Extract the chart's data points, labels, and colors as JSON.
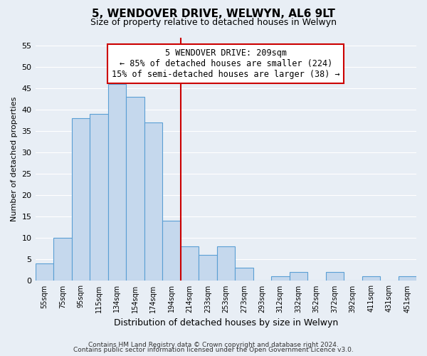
{
  "title": "5, WENDOVER DRIVE, WELWYN, AL6 9LT",
  "subtitle": "Size of property relative to detached houses in Welwyn",
  "xlabel": "Distribution of detached houses by size in Welwyn",
  "ylabel": "Number of detached properties",
  "categories": [
    "55sqm",
    "75sqm",
    "95sqm",
    "115sqm",
    "134sqm",
    "154sqm",
    "174sqm",
    "194sqm",
    "214sqm",
    "233sqm",
    "253sqm",
    "273sqm",
    "293sqm",
    "312sqm",
    "332sqm",
    "352sqm",
    "372sqm",
    "392sqm",
    "411sqm",
    "431sqm",
    "451sqm"
  ],
  "values": [
    4,
    10,
    38,
    39,
    46,
    43,
    37,
    14,
    8,
    6,
    8,
    3,
    0,
    1,
    2,
    0,
    2,
    0,
    1,
    0,
    1
  ],
  "bar_color": "#c5d8ed",
  "bar_edge_color": "#5a9fd4",
  "vline_color": "#cc0000",
  "annotation_line1": "5 WENDOVER DRIVE: 209sqm",
  "annotation_line2": "← 85% of detached houses are smaller (224)",
  "annotation_line3": "15% of semi-detached houses are larger (38) →",
  "annotation_box_color": "#ffffff",
  "annotation_box_edge_color": "#cc0000",
  "ylim": [
    0,
    57
  ],
  "yticks": [
    0,
    5,
    10,
    15,
    20,
    25,
    30,
    35,
    40,
    45,
    50,
    55
  ],
  "footer_line1": "Contains HM Land Registry data © Crown copyright and database right 2024.",
  "footer_line2": "Contains public sector information licensed under the Open Government Licence v3.0.",
  "bg_color": "#e8eef5",
  "plot_bg_color": "#e8eef5",
  "grid_color": "#ffffff",
  "title_fontsize": 11,
  "subtitle_fontsize": 9,
  "xlabel_fontsize": 9,
  "ylabel_fontsize": 8
}
